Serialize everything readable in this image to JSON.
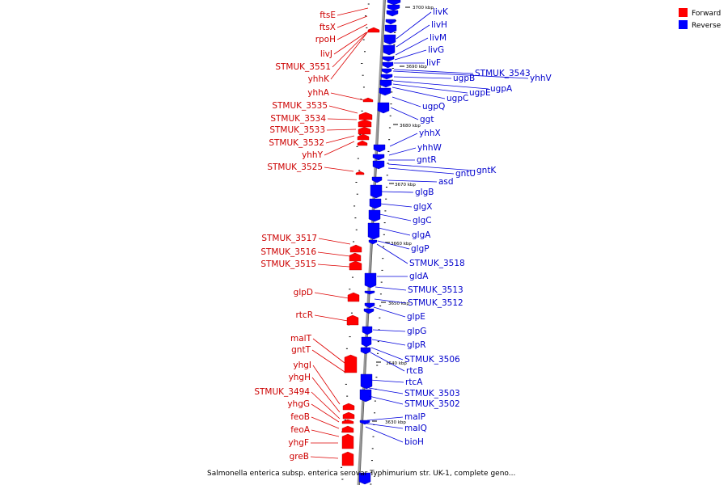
{
  "colors": {
    "forward": "#ff0000",
    "reverse": "#0000ff",
    "forward_text": "#cc0000",
    "reverse_text": "#0000cc",
    "backbone": "#888888"
  },
  "legend": {
    "forward_label": "Forward",
    "reverse_label": "Reverse"
  },
  "caption": "Salmonella enterica subsp. enterica serovar Typhimurium str. UK-1, complete geno...",
  "kbp_labels": [
    "3700 kbp",
    "3690 kbp",
    "3680 kbp",
    "3670 kbp",
    "3660 kbp",
    "3650 kbp",
    "3640 kbp",
    "3630 kbp"
  ],
  "forward_genes": [
    {
      "name": "ftsE"
    },
    {
      "name": "ftsX"
    },
    {
      "name": "rpoH"
    },
    {
      "name": "livJ"
    },
    {
      "name": "STMUK_3551"
    },
    {
      "name": "yhhK"
    },
    {
      "name": "yhhA"
    },
    {
      "name": "STMUK_3535"
    },
    {
      "name": "STMUK_3534"
    },
    {
      "name": "STMUK_3533"
    },
    {
      "name": "STMUK_3532"
    },
    {
      "name": "yhhY"
    },
    {
      "name": "STMUK_3525"
    },
    {
      "name": "STMUK_3517"
    },
    {
      "name": "STMUK_3516"
    },
    {
      "name": "STMUK_3515"
    },
    {
      "name": "glpD"
    },
    {
      "name": "rtcR"
    },
    {
      "name": "malT"
    },
    {
      "name": "gntT"
    },
    {
      "name": "yhgI"
    },
    {
      "name": "yhgH"
    },
    {
      "name": "STMUK_3494"
    },
    {
      "name": "yhgG"
    },
    {
      "name": "feoB"
    },
    {
      "name": "feoA"
    },
    {
      "name": "yhgF"
    },
    {
      "name": "greB"
    }
  ],
  "reverse_genes": [
    {
      "name": "livK"
    },
    {
      "name": "livH"
    },
    {
      "name": "livM"
    },
    {
      "name": "livG"
    },
    {
      "name": "livF"
    },
    {
      "name": "STMUK_3543"
    },
    {
      "name": "yhhV"
    },
    {
      "name": "ugpB"
    },
    {
      "name": "ugpA"
    },
    {
      "name": "ugpE"
    },
    {
      "name": "ugpC"
    },
    {
      "name": "ugpQ"
    },
    {
      "name": "ggt"
    },
    {
      "name": "yhhX"
    },
    {
      "name": "yhhW"
    },
    {
      "name": "gntR"
    },
    {
      "name": "gntK"
    },
    {
      "name": "gntU"
    },
    {
      "name": "asd"
    },
    {
      "name": "glgB"
    },
    {
      "name": "glgX"
    },
    {
      "name": "glgC"
    },
    {
      "name": "glgA"
    },
    {
      "name": "glgP"
    },
    {
      "name": "STMUK_3518"
    },
    {
      "name": "gldA"
    },
    {
      "name": "STMUK_3513"
    },
    {
      "name": "STMUK_3512"
    },
    {
      "name": "glpE"
    },
    {
      "name": "glpG"
    },
    {
      "name": "glpR"
    },
    {
      "name": "STMUK_3506"
    },
    {
      "name": "rtcB"
    },
    {
      "name": "rtcA"
    },
    {
      "name": "STMUK_3503"
    },
    {
      "name": "STMUK_3502"
    },
    {
      "name": "malP"
    },
    {
      "name": "malQ"
    },
    {
      "name": "bioH"
    }
  ]
}
